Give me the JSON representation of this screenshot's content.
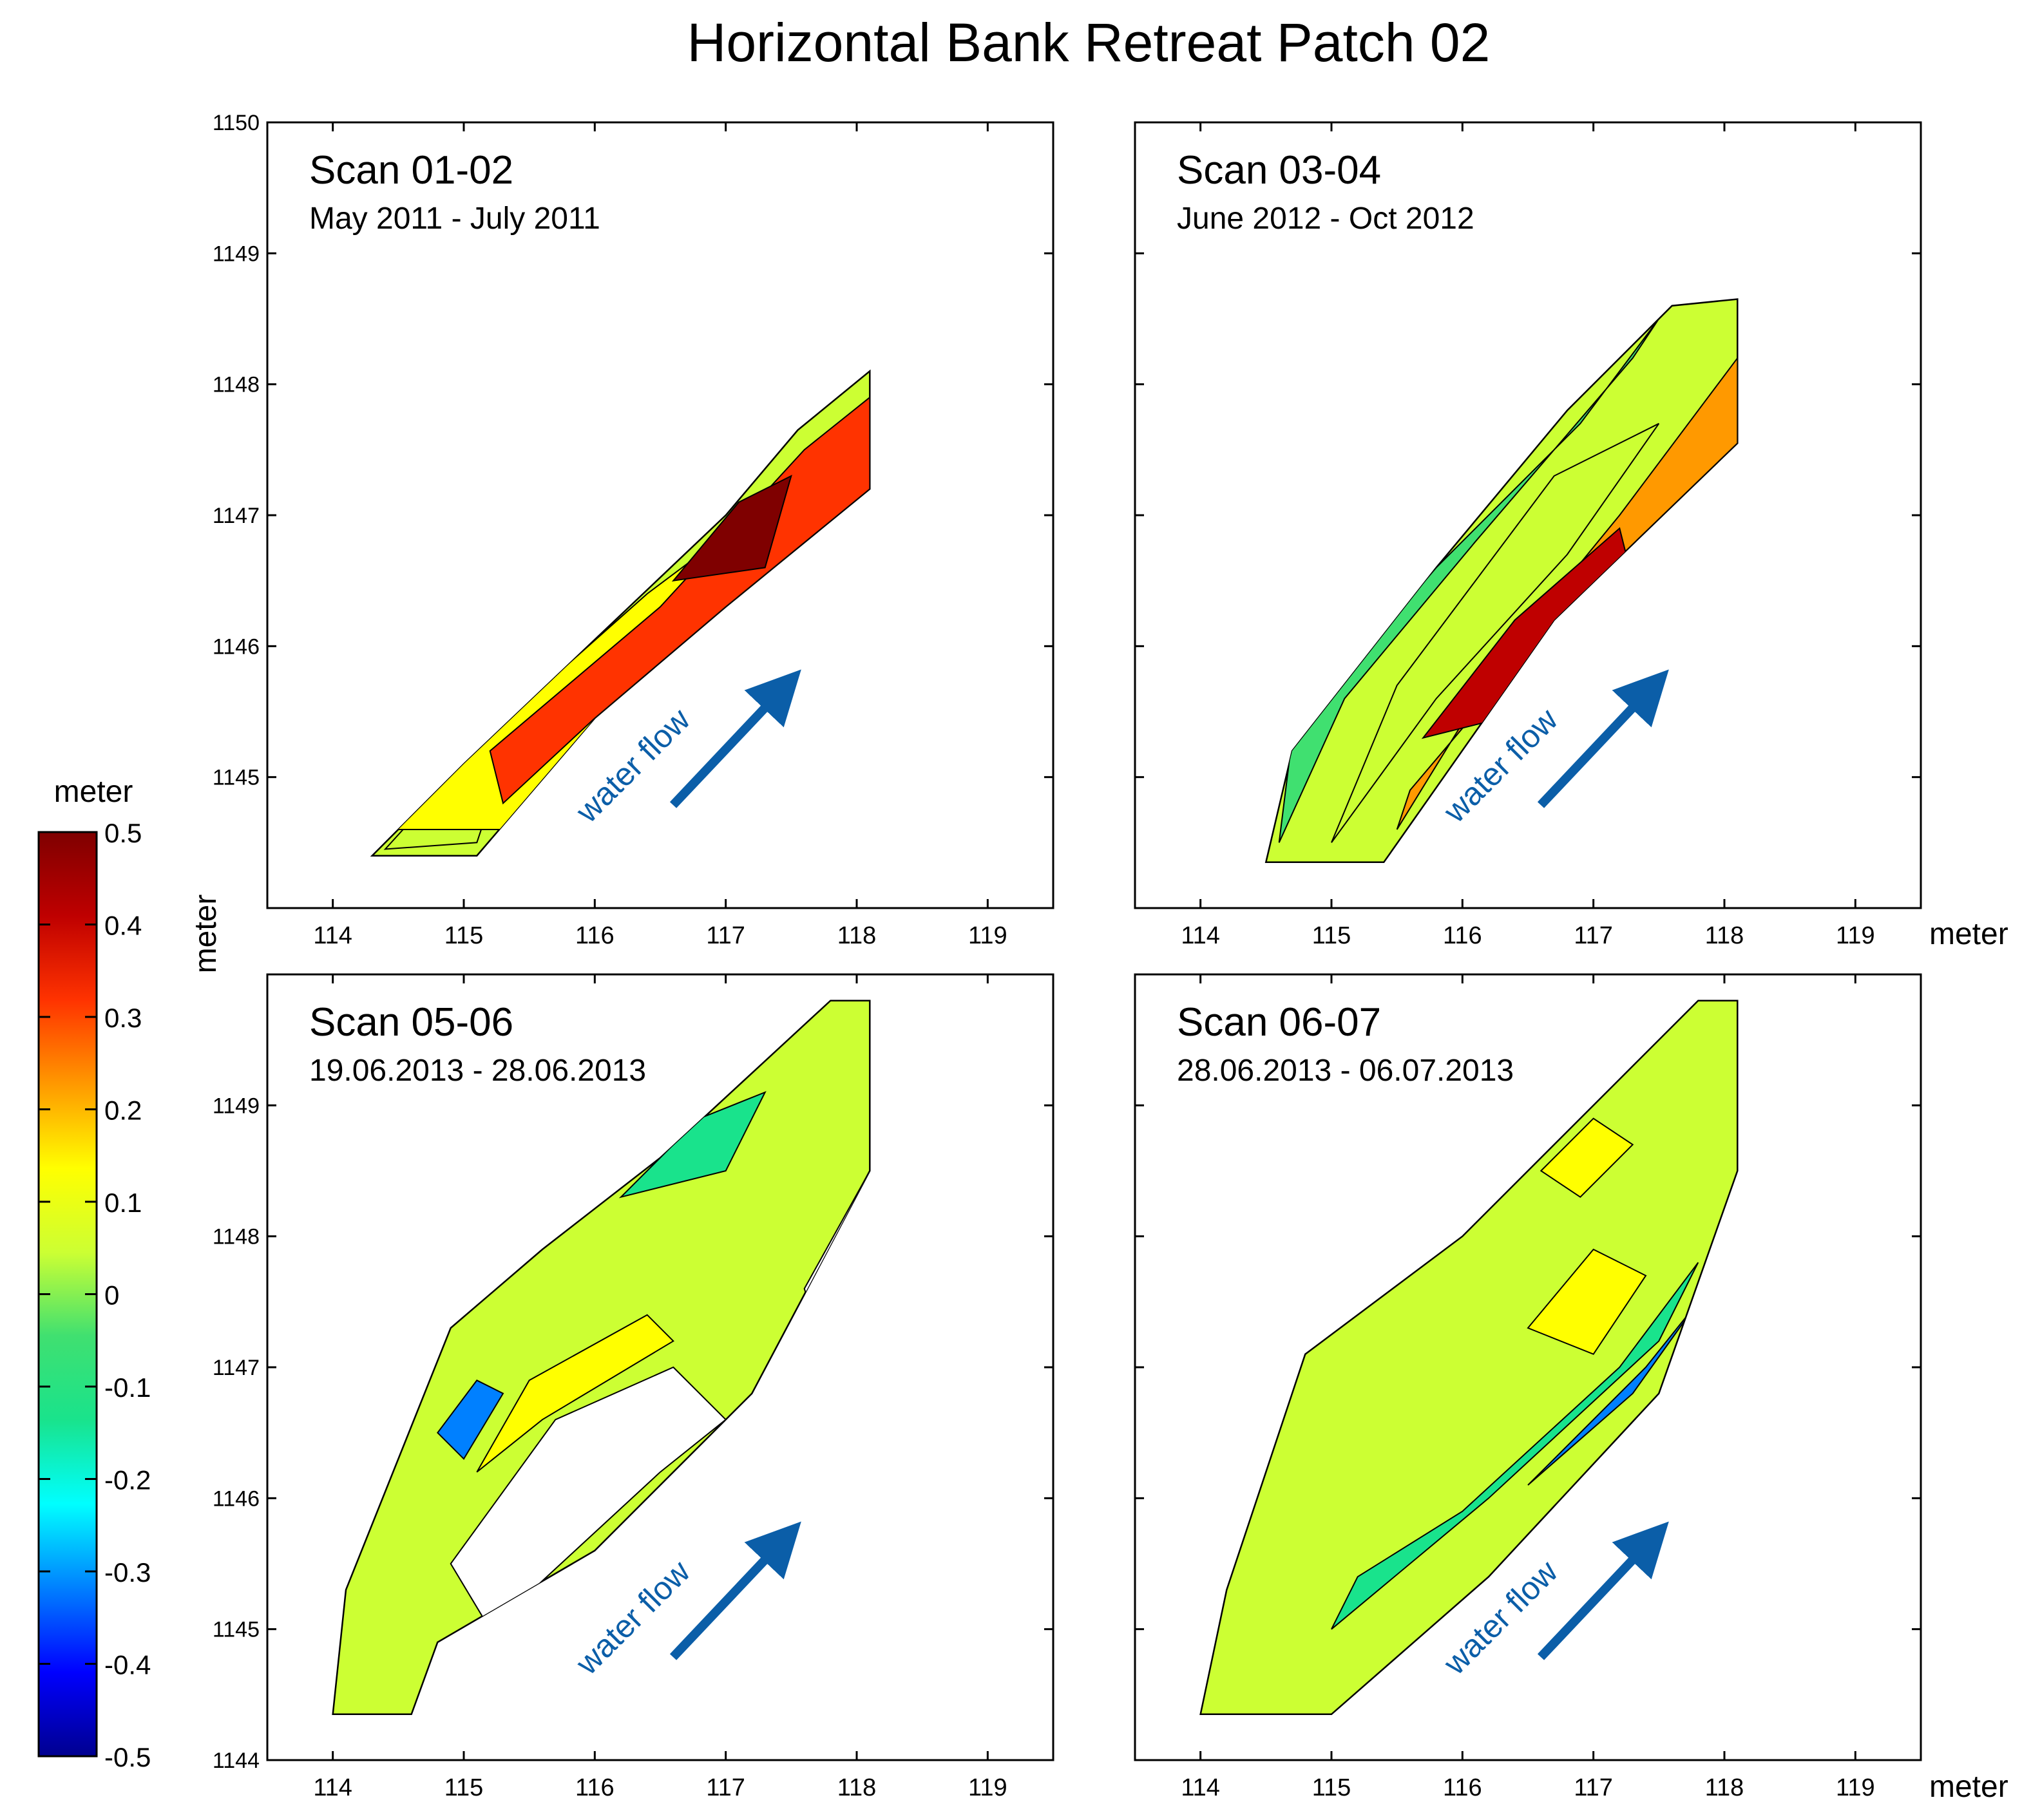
{
  "title": "Horizontal Bank Retreat Patch 02",
  "colorbar": {
    "unit_label": "meter",
    "ticks": [
      "0.5",
      "0.4",
      "0.3",
      "0.2",
      "0.1",
      "0",
      "-0.1",
      "-0.2",
      "-0.3",
      "-0.4",
      "-0.5"
    ],
    "range": [
      -0.5,
      0.5
    ],
    "colors": [
      "#00008f",
      "#0000ff",
      "#0080ff",
      "#00ffff",
      "#19e38c",
      "#40e070",
      "#ccff33",
      "#ffff00",
      "#ff9900",
      "#ff3300",
      "#bf0000",
      "#7f0000"
    ]
  },
  "axis_label_y": "meter",
  "axis_label_x": "meter",
  "water_flow_label": "water flow",
  "arrow_color": "#0b5ea8",
  "chart_data": [
    {
      "type": "heatmap",
      "title": "Scan 01-02",
      "subtitle": "May 2011 - July 2011",
      "xlim": [
        113.5,
        119.5
      ],
      "ylim": [
        1144,
        1150
      ],
      "xticks": [
        "114",
        "115",
        "116",
        "117",
        "118",
        "119"
      ],
      "yticks": [
        "1150",
        "1149",
        "1148",
        "1147",
        "1146",
        "1145"
      ],
      "xtick_values": [
        114,
        115,
        116,
        117,
        118,
        119
      ],
      "ytick_values": [
        1150,
        1149,
        1148,
        1147,
        1146,
        1145
      ],
      "outline": [
        [
          114.3,
          1144.4
        ],
        [
          114.5,
          1144.6
        ],
        [
          115,
          1145.1
        ],
        [
          116,
          1146.05
        ],
        [
          117,
          1147.0
        ],
        [
          117.55,
          1147.65
        ],
        [
          118.1,
          1148.1
        ],
        [
          118.1,
          1147.2
        ],
        [
          117,
          1146.3
        ],
        [
          116,
          1145.45
        ],
        [
          115.1,
          1144.4
        ]
      ],
      "levels": [
        {
          "value": 0.0,
          "poly": [
            [
              114.4,
              1144.45
            ],
            [
              114.9,
              1145.0
            ],
            [
              115.4,
              1145.4
            ],
            [
              115.1,
              1144.5
            ]
          ]
        },
        {
          "value": 0.15,
          "poly": [
            [
              114.4,
              1144.6
            ],
            [
              115.5,
              1145.6
            ],
            [
              116.4,
              1146.4
            ],
            [
              117.2,
              1147.0
            ],
            [
              117.5,
              1146.7
            ],
            [
              116.4,
              1145.8
            ],
            [
              115.3,
              1144.6
            ]
          ]
        },
        {
          "value": 0.3,
          "poly": [
            [
              115.2,
              1145.2
            ],
            [
              116.5,
              1146.3
            ],
            [
              117.6,
              1147.5
            ],
            [
              118.1,
              1147.9
            ],
            [
              118.1,
              1147.2
            ],
            [
              117,
              1146.3
            ],
            [
              116,
              1145.45
            ],
            [
              115.3,
              1144.8
            ]
          ]
        },
        {
          "value": 0.42,
          "poly": [
            [
              116.6,
              1146.5
            ],
            [
              117.1,
              1147.1
            ],
            [
              117.5,
              1147.3
            ],
            [
              117.3,
              1146.6
            ]
          ]
        }
      ]
    },
    {
      "type": "heatmap",
      "title": "Scan 03-04",
      "subtitle": "June 2012 - Oct 2012",
      "xlim": [
        113.5,
        119.5
      ],
      "ylim": [
        1144,
        1150
      ],
      "xticks": [
        "114",
        "115",
        "116",
        "117",
        "118",
        "119"
      ],
      "yticks": [],
      "xtick_values": [
        114,
        115,
        116,
        117,
        118,
        119
      ],
      "ytick_values": [
        1150,
        1149,
        1148,
        1147,
        1146,
        1145
      ],
      "outline": [
        [
          114.5,
          1144.35
        ],
        [
          114.7,
          1145.2
        ],
        [
          115.8,
          1146.6
        ],
        [
          116.8,
          1147.8
        ],
        [
          117.6,
          1148.6
        ],
        [
          118.1,
          1148.65
        ],
        [
          118.1,
          1147.55
        ],
        [
          116.7,
          1146.2
        ],
        [
          115.4,
          1144.35
        ]
      ],
      "levels": [
        {
          "value": -0.08,
          "poly": [
            [
              114.6,
              1144.5
            ],
            [
              114.7,
              1145.3
            ],
            [
              115.8,
              1146.6
            ],
            [
              116.9,
              1147.7
            ],
            [
              117.5,
              1148.5
            ],
            [
              117.3,
              1148.2
            ],
            [
              116.1,
              1146.8
            ],
            [
              115.1,
              1145.6
            ]
          ]
        },
        {
          "value": 0.05,
          "poly": [
            [
              115.0,
              1144.5
            ],
            [
              115.8,
              1145.6
            ],
            [
              116.8,
              1146.7
            ],
            [
              117.5,
              1147.7
            ],
            [
              116.7,
              1147.3
            ],
            [
              115.5,
              1145.7
            ]
          ]
        },
        {
          "value": 0.22,
          "poly": [
            [
              115.5,
              1144.6
            ],
            [
              116.3,
              1145.9
            ],
            [
              117.2,
              1147.0
            ],
            [
              118.1,
              1148.2
            ],
            [
              118.1,
              1147.55
            ],
            [
              116.7,
              1146.2
            ],
            [
              115.6,
              1144.9
            ]
          ]
        },
        {
          "value": 0.36,
          "poly": [
            [
              115.7,
              1145.3
            ],
            [
              116.4,
              1146.2
            ],
            [
              117.2,
              1146.9
            ],
            [
              117.3,
              1146.5
            ],
            [
              116.5,
              1145.5
            ]
          ]
        }
      ]
    },
    {
      "type": "heatmap",
      "title": "Scan 05-06",
      "subtitle": "19.06.2013 - 28.06.2013",
      "xlim": [
        113.5,
        119.5
      ],
      "ylim": [
        1144,
        1150
      ],
      "xticks": [
        "114",
        "115",
        "116",
        "117",
        "118",
        "119"
      ],
      "yticks": [
        "1149",
        "1148",
        "1147",
        "1146",
        "1145",
        "1144"
      ],
      "xtick_values": [
        114,
        115,
        116,
        117,
        118,
        119
      ],
      "ytick_values": [
        1149,
        1148,
        1147,
        1146,
        1145,
        1144
      ],
      "outline": [
        [
          114.0,
          1144.35
        ],
        [
          114.1,
          1145.3
        ],
        [
          114.9,
          1147.3
        ],
        [
          115.6,
          1147.9
        ],
        [
          116.5,
          1148.6
        ],
        [
          117.8,
          1149.8
        ],
        [
          118.1,
          1149.8
        ],
        [
          118.1,
          1148.5
        ],
        [
          117.2,
          1146.8
        ],
        [
          116.0,
          1145.6
        ],
        [
          114.8,
          1144.9
        ],
        [
          114.6,
          1144.35
        ]
      ],
      "holes": [
        [
          [
            115.2,
            1145.0
          ],
          [
            116.5,
            1146.2
          ],
          [
            117.0,
            1146.6
          ],
          [
            116.6,
            1147.0
          ],
          [
            115.7,
            1146.6
          ],
          [
            114.9,
            1145.5
          ]
        ],
        [
          [
            117.6,
            1147.6
          ],
          [
            118.1,
            1148.5
          ],
          [
            118.1,
            1147.9
          ],
          [
            117.7,
            1147.3
          ]
        ]
      ],
      "levels": [
        {
          "value": -0.15,
          "poly": [
            [
              116.2,
              1148.3
            ],
            [
              116.8,
              1148.9
            ],
            [
              117.3,
              1149.1
            ],
            [
              117.0,
              1148.5
            ]
          ]
        },
        {
          "value": -0.3,
          "poly": [
            [
              114.8,
              1146.5
            ],
            [
              115.1,
              1146.9
            ],
            [
              115.3,
              1146.8
            ],
            [
              115.0,
              1146.3
            ]
          ]
        },
        {
          "value": 0.1,
          "poly": [
            [
              115.1,
              1146.2
            ],
            [
              115.6,
              1146.6
            ],
            [
              116.6,
              1147.2
            ],
            [
              116.4,
              1147.4
            ],
            [
              115.5,
              1146.9
            ]
          ]
        }
      ]
    },
    {
      "type": "heatmap",
      "title": "Scan 06-07",
      "subtitle": "28.06.2013 - 06.07.2013",
      "xlim": [
        113.5,
        119.5
      ],
      "ylim": [
        1144,
        1150
      ],
      "xticks": [
        "114",
        "115",
        "116",
        "117",
        "118",
        "119"
      ],
      "yticks": [],
      "xtick_values": [
        114,
        115,
        116,
        117,
        118,
        119
      ],
      "ytick_values": [
        1149,
        1148,
        1147,
        1146,
        1145,
        1144
      ],
      "outline": [
        [
          114.0,
          1144.35
        ],
        [
          114.2,
          1145.3
        ],
        [
          114.8,
          1147.1
        ],
        [
          116.0,
          1148.0
        ],
        [
          117.2,
          1149.2
        ],
        [
          117.8,
          1149.8
        ],
        [
          118.1,
          1149.8
        ],
        [
          118.1,
          1148.5
        ],
        [
          117.5,
          1146.8
        ],
        [
          116.2,
          1145.4
        ],
        [
          115.0,
          1144.35
        ]
      ],
      "levels": [
        {
          "value": -0.12,
          "poly": [
            [
              115.0,
              1145.0
            ],
            [
              116.2,
              1146.0
            ],
            [
              117.5,
              1147.2
            ],
            [
              117.8,
              1147.8
            ],
            [
              117.2,
              1147.0
            ],
            [
              116.0,
              1145.9
            ],
            [
              115.2,
              1145.4
            ]
          ]
        },
        {
          "value": -0.3,
          "poly": [
            [
              116.5,
              1146.1
            ],
            [
              117.4,
              1147.0
            ],
            [
              117.8,
              1147.5
            ],
            [
              117.3,
              1146.8
            ]
          ]
        },
        {
          "value": 0.35,
          "poly": [
            [
              115.3,
              1144.5
            ],
            [
              116.5,
              1145.6
            ],
            [
              117.6,
              1146.9
            ],
            [
              117.9,
              1147.4
            ],
            [
              117.7,
              1146.9
            ],
            [
              116.5,
              1145.4
            ],
            [
              115.6,
              1144.5
            ]
          ]
        },
        {
          "value": 0.1,
          "poly": [
            [
              116.5,
              1147.3
            ],
            [
              117.0,
              1147.9
            ],
            [
              117.4,
              1147.7
            ],
            [
              117.0,
              1147.1
            ]
          ]
        },
        {
          "value": 0.15,
          "poly": [
            [
              116.6,
              1148.5
            ],
            [
              117.0,
              1148.9
            ],
            [
              117.3,
              1148.7
            ],
            [
              116.9,
              1148.3
            ]
          ]
        }
      ]
    }
  ]
}
